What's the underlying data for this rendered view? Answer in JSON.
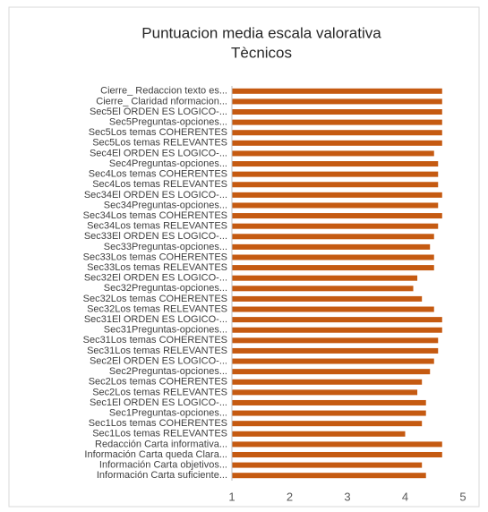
{
  "chart_data": {
    "type": "bar",
    "orientation": "horizontal",
    "title": "Puntuacion media escala valorativa",
    "subtitle": "Tècnicos",
    "categories": [
      "Cierre_ Redaccion texto es...",
      "Cierre_ Claridad nformacion...",
      "Sec5El ORDEN ES LOGICO-...",
      "Sec5Preguntas-opciones...",
      "Sec5Los temas COHERENTES",
      "Sec5Los temas RELEVANTES",
      "Sec4El ORDEN ES LOGICO-...",
      "Sec4Preguntas-opciones...",
      "Sec4Los temas COHERENTES",
      "Sec4Los temas RELEVANTES",
      "Sec34El ORDEN ES LOGICO-...",
      "Sec34Preguntas-opciones...",
      "Sec34Los temas COHERENTES",
      "Sec34Los temas RELEVANTES",
      "Sec33El ORDEN ES LOGICO-...",
      "Sec33Preguntas-opciones...",
      "Sec33Los temas COHERENTES",
      "Sec33Los temas RELEVANTES",
      "Sec32El ORDEN ES LOGICO-...",
      "Sec32Preguntas-opciones...",
      "Sec32Los temas COHERENTES",
      "Sec32Los temas RELEVANTES",
      "Sec31El ORDEN ES LOGICO-...",
      "Sec31Preguntas-opciones...",
      "Sec31Los temas COHERENTES",
      "Sec31Los temas RELEVANTES",
      "Sec2El ORDEN ES LOGICO-...",
      "Sec2Preguntas-opciones...",
      "Sec2Los temas COHERENTES",
      "Sec2Los temas RELEVANTES",
      "Sec1El ORDEN ES LOGICO-...",
      "Sec1Preguntas-opciones...",
      "Sec1Los temas COHERENTES",
      "Sec1Los temas RELEVANTES",
      "Redacción Carta informativa...",
      "Información Carta queda Clara...",
      "Información Carta objetivos...",
      "Información Carta suficiente..."
    ],
    "values": [
      4.64,
      4.64,
      4.64,
      4.64,
      4.64,
      4.64,
      4.5,
      4.57,
      4.57,
      4.57,
      4.64,
      4.57,
      4.64,
      4.57,
      4.5,
      4.43,
      4.5,
      4.5,
      4.21,
      4.14,
      4.29,
      4.5,
      4.64,
      4.64,
      4.57,
      4.57,
      4.5,
      4.43,
      4.29,
      4.21,
      4.36,
      4.36,
      4.29,
      4.0,
      4.64,
      4.64,
      4.29,
      4.36
    ],
    "color": "#c55a11",
    "xlim": [
      1,
      5
    ],
    "xticks": [
      1,
      2,
      3,
      4,
      5
    ],
    "grid": false
  }
}
